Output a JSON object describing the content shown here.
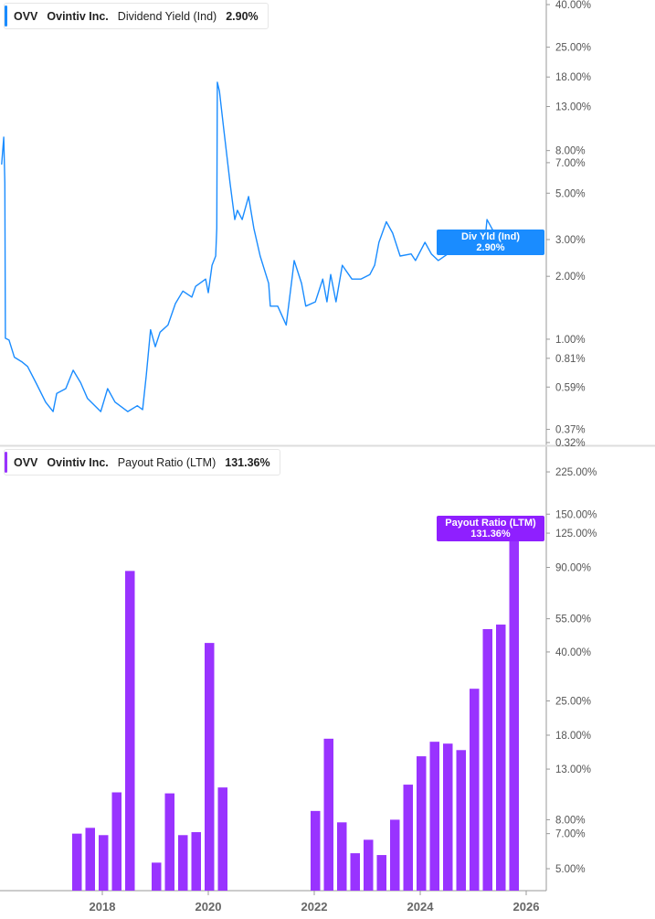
{
  "colors": {
    "yield": "#1a8cff",
    "payout": "#9933ff",
    "axis": "#999999"
  },
  "top_legend": {
    "ticker": "OVV",
    "company": "Ovintiv Inc.",
    "metric": "Dividend Yield (Ind)",
    "value": "2.90%"
  },
  "bottom_legend": {
    "ticker": "OVV",
    "company": "Ovintiv Inc.",
    "metric": "Payout Ratio (LTM)",
    "value": "131.36%"
  },
  "top_tag": {
    "label": "Div Yld (Ind)",
    "value": "2.90%"
  },
  "bottom_tag": {
    "label": "Payout Ratio (LTM)",
    "value": "131.36%"
  },
  "chart_data": [
    {
      "type": "line",
      "scale": "log",
      "yunit": "%",
      "ylim": [
        0.32,
        40
      ],
      "yticks": [
        40,
        25,
        18,
        13,
        8,
        7,
        5,
        3,
        2,
        1,
        0.81,
        0.59,
        0.37,
        0.32
      ],
      "ytick_labels": [
        "40.00%",
        "25.00%",
        "18.00%",
        "13.00%",
        "8.00%",
        "7.00%",
        "5.00%",
        "3.00%",
        "2.00%",
        "1.00%",
        "0.81%",
        "0.59%",
        "0.37%",
        "0.32%"
      ],
      "series": [
        {
          "name": "Dividend Yield (Ind)",
          "x": [
            2016.1,
            2016.14,
            2016.16,
            2016.17,
            2016.24,
            2016.34,
            2016.48,
            2016.59,
            2016.76,
            2016.93,
            2017.07,
            2017.14,
            2017.31,
            2017.45,
            2017.59,
            2017.72,
            2017.97,
            2018.1,
            2018.24,
            2018.48,
            2018.66,
            2018.76,
            2018.83,
            2018.91,
            2019.0,
            2019.09,
            2019.24,
            2019.38,
            2019.52,
            2019.69,
            2019.76,
            2019.95,
            2020.0,
            2020.07,
            2020.14,
            2020.16,
            2020.17,
            2020.21,
            2020.29,
            2020.41,
            2020.5,
            2020.55,
            2020.64,
            2020.76,
            2020.86,
            2020.98,
            2021.14,
            2021.17,
            2021.31,
            2021.47,
            2021.59,
            2021.62,
            2021.76,
            2021.84,
            2022.02,
            2022.16,
            2022.24,
            2022.31,
            2022.41,
            2022.53,
            2022.71,
            2022.88,
            2023.05,
            2023.14,
            2023.22,
            2023.36,
            2023.48,
            2023.62,
            2023.83,
            2023.91,
            2024.09,
            2024.21,
            2024.34,
            2024.52,
            2024.69,
            2024.78,
            2024.86,
            2024.98,
            2025.09,
            2025.21,
            2025.26,
            2025.4,
            2025.55,
            2025.72,
            2025.9,
            2026.03
          ],
          "y": [
            6.86,
            9.27,
            5.61,
            1.01,
            0.99,
            0.82,
            0.78,
            0.74,
            0.61,
            0.5,
            0.45,
            0.55,
            0.58,
            0.71,
            0.62,
            0.52,
            0.45,
            0.58,
            0.5,
            0.45,
            0.48,
            0.46,
            0.67,
            1.11,
            0.92,
            1.08,
            1.17,
            1.48,
            1.7,
            1.59,
            1.79,
            1.94,
            1.67,
            2.26,
            2.5,
            3.39,
            17.0,
            15.4,
            10.25,
            5.61,
            3.74,
            4.14,
            3.74,
            4.82,
            3.39,
            2.5,
            1.85,
            1.44,
            1.44,
            1.17,
            2.04,
            2.38,
            1.85,
            1.44,
            1.51,
            1.94,
            1.51,
            2.04,
            1.51,
            2.26,
            1.94,
            1.94,
            2.04,
            2.26,
            2.91,
            3.65,
            3.22,
            2.5,
            2.56,
            2.38,
            2.91,
            2.56,
            2.38,
            2.56,
            2.76,
            2.91,
            2.7,
            3.22,
            2.91,
            2.76,
            3.74,
            3.22,
            3.02,
            2.91,
            3.1,
            2.9
          ]
        }
      ]
    },
    {
      "type": "bar",
      "scale": "log",
      "yunit": "%",
      "ylim": [
        4.2,
        225
      ],
      "yticks": [
        225,
        150,
        125,
        90,
        55,
        40,
        25,
        18,
        13,
        8,
        7,
        5
      ],
      "ytick_labels": [
        "225.00%",
        "150.00%",
        "125.00%",
        "90.00%",
        "55.00%",
        "40.00%",
        "25.00%",
        "18.00%",
        "13.00%",
        "8.00%",
        "7.00%",
        "5.00%"
      ],
      "xticks": [
        2018,
        2020,
        2022,
        2024,
        2026
      ],
      "xtick_labels": [
        "2018",
        "2020",
        "2022",
        "2024",
        "2026"
      ],
      "series": [
        {
          "name": "Payout Ratio (LTM)",
          "x": [
            2017.5,
            2017.75,
            2018.0,
            2018.25,
            2018.5,
            2019.0,
            2019.25,
            2019.5,
            2019.75,
            2020.0,
            2020.25,
            2022.0,
            2022.25,
            2022.5,
            2022.75,
            2023.0,
            2023.25,
            2023.5,
            2023.75,
            2024.0,
            2024.25,
            2024.5,
            2024.75,
            2025.0,
            2025.25,
            2025.5,
            2025.75
          ],
          "y": [
            7.0,
            7.4,
            6.9,
            10.4,
            87,
            5.3,
            10.3,
            6.9,
            7.1,
            43.6,
            10.9,
            8.7,
            17.4,
            7.8,
            5.8,
            6.6,
            5.7,
            8.0,
            11.2,
            14.7,
            16.9,
            16.6,
            15.6,
            28.1,
            49.8,
            52.0,
            131.36
          ]
        }
      ]
    }
  ]
}
